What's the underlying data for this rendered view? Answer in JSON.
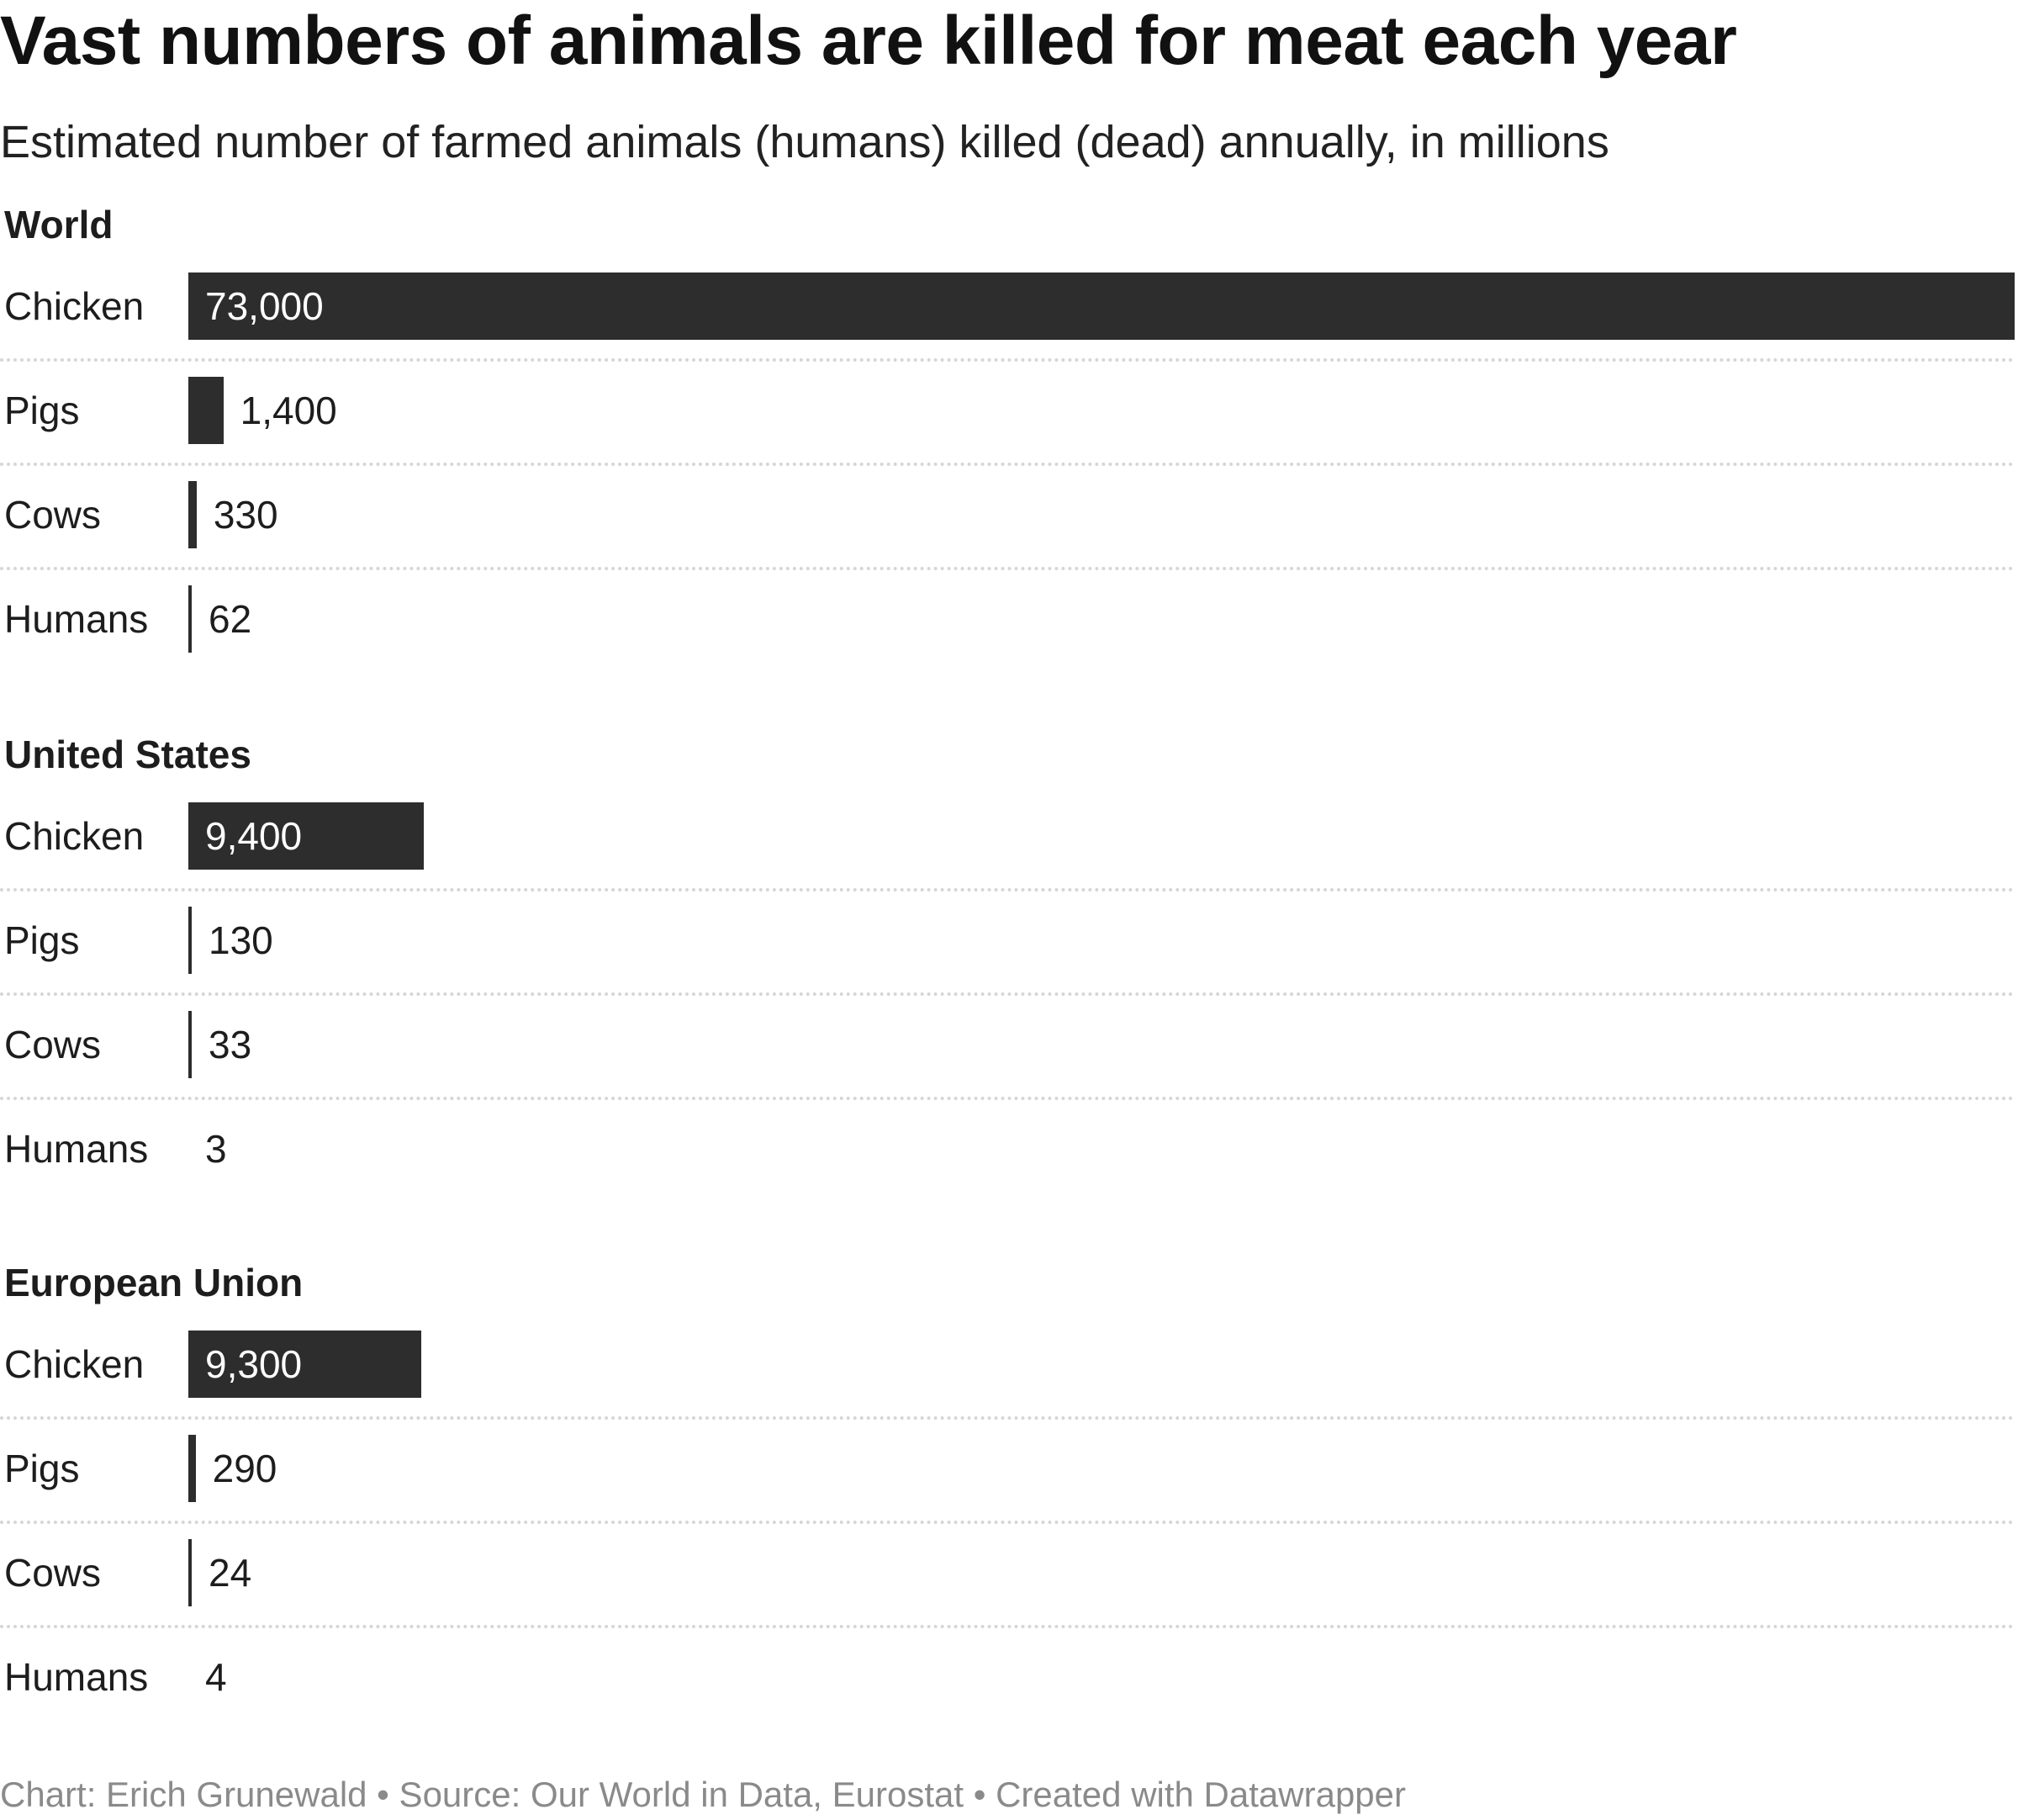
{
  "title": "Vast numbers of animals are killed for meat each year",
  "subtitle": "Estimated number of farmed animals (humans) killed (dead) annually, in millions",
  "footer": "Chart: Erich Grunewald • Source: Our World in Data, Eurostat • Created with Datawrapper",
  "colors": {
    "bar": "#2d2d2d",
    "label_inside": "#ffffff",
    "label_outside": "#1d1d1d",
    "divider": "#d6d6d6",
    "footer": "#8a8a8a"
  },
  "chart_data": {
    "type": "bar",
    "orientation": "horizontal",
    "unit": "millions",
    "xlim": [
      0,
      73000
    ],
    "grid": false,
    "groups": [
      {
        "name": "World",
        "categories": [
          "Chicken",
          "Pigs",
          "Cows",
          "Humans"
        ],
        "values": [
          73000,
          1400,
          330,
          62
        ],
        "value_labels": [
          "73,000",
          "1,400",
          "330",
          "62"
        ]
      },
      {
        "name": "United States",
        "categories": [
          "Chicken",
          "Pigs",
          "Cows",
          "Humans"
        ],
        "values": [
          9400,
          130,
          33,
          3
        ],
        "value_labels": [
          "9,400",
          "130",
          "33",
          "3"
        ]
      },
      {
        "name": "European Union",
        "categories": [
          "Chicken",
          "Pigs",
          "Cows",
          "Humans"
        ],
        "values": [
          9300,
          290,
          24,
          4
        ],
        "value_labels": [
          "9,300",
          "290",
          "24",
          "4"
        ]
      }
    ]
  }
}
